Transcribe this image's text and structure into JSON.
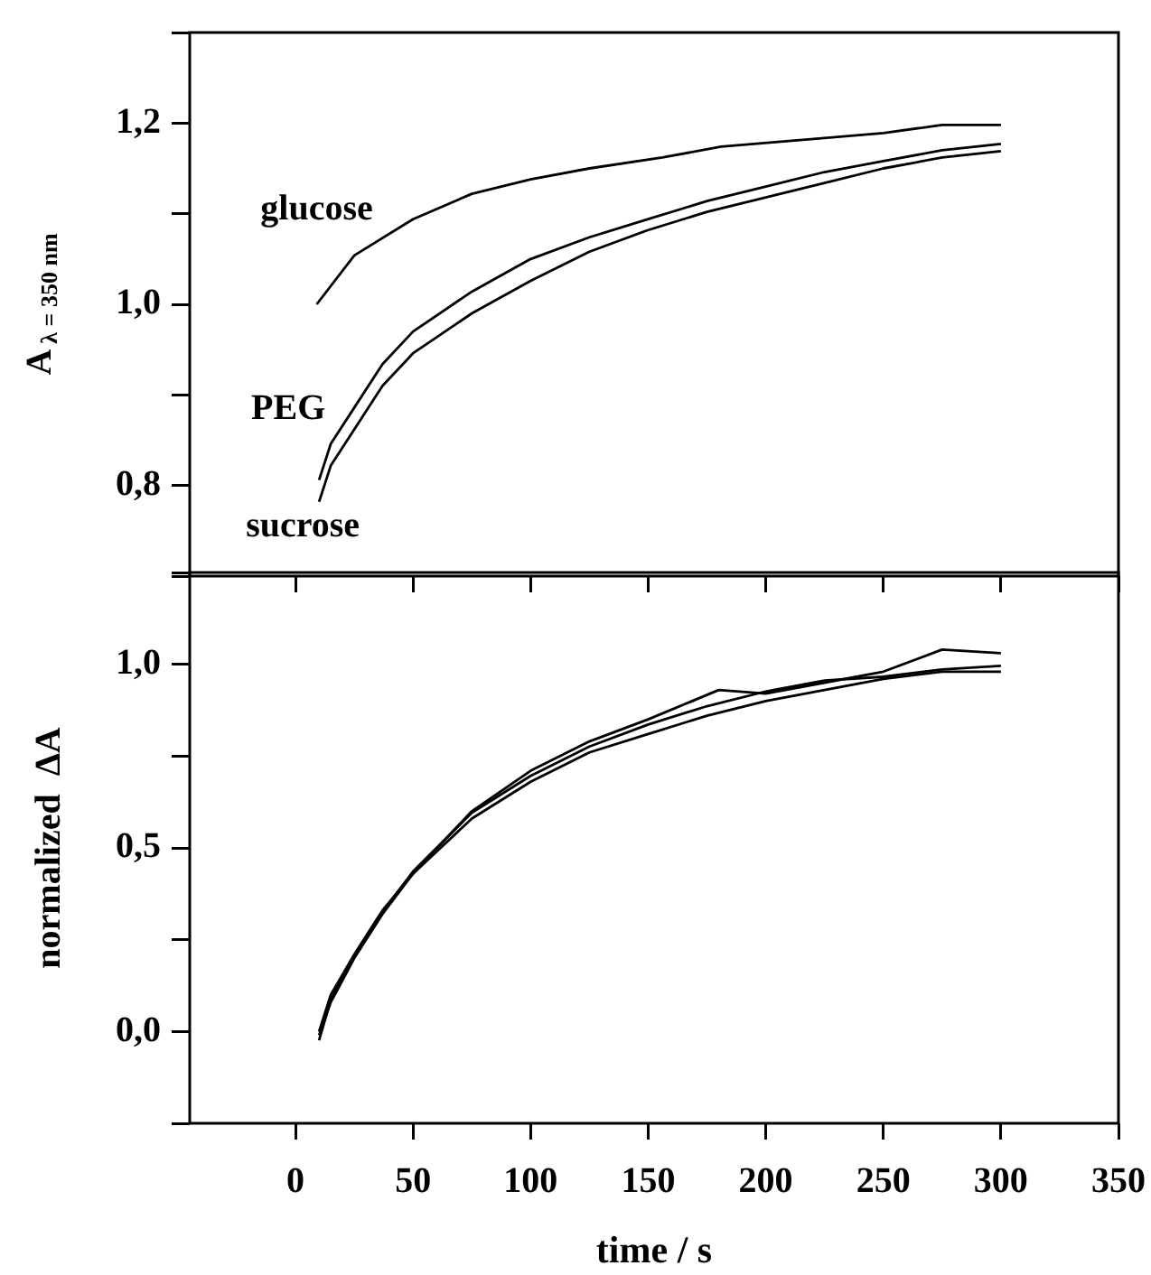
{
  "chart_data": [
    {
      "type": "line",
      "ylabel": "A$_{λ = 350 nm}$",
      "xlim": [
        -45,
        350
      ],
      "xticks": [
        0,
        50,
        100,
        150,
        200,
        250,
        300,
        350
      ],
      "ylim": [
        0.7,
        1.3
      ],
      "yticks": [
        {
          "value": 0.7,
          "label": null
        },
        {
          "value": 0.8,
          "label": "0,8"
        },
        {
          "value": 0.9,
          "label": null
        },
        {
          "value": 1.0,
          "label": "1,0"
        },
        {
          "value": 1.1,
          "label": null
        },
        {
          "value": 1.2,
          "label": "1,2"
        },
        {
          "value": 1.3,
          "label": null
        }
      ],
      "tick_labels": "y",
      "series": [
        {
          "name": "glucose",
          "color": "#000000",
          "x": [
            9,
            25,
            50,
            75,
            100,
            125,
            156,
            181,
            218,
            250,
            275,
            300
          ],
          "values": [
            1.0,
            1.054,
            1.094,
            1.122,
            1.138,
            1.15,
            1.162,
            1.174,
            1.182,
            1.189,
            1.198,
            1.198
          ]
        },
        {
          "name": "PEG",
          "color": "#000000",
          "x": [
            10,
            15,
            25,
            37,
            50,
            75,
            100,
            125,
            150,
            175,
            200,
            225,
            250,
            275,
            300
          ],
          "values": [
            0.806,
            0.846,
            0.886,
            0.934,
            0.97,
            1.014,
            1.05,
            1.074,
            1.094,
            1.114,
            1.13,
            1.146,
            1.158,
            1.17,
            1.177
          ]
        },
        {
          "name": "sucrose",
          "color": "#000000",
          "x": [
            10,
            15,
            25,
            37,
            50,
            75,
            100,
            125,
            150,
            175,
            200,
            225,
            250,
            275,
            300
          ],
          "values": [
            0.782,
            0.822,
            0.862,
            0.91,
            0.946,
            0.99,
            1.026,
            1.058,
            1.082,
            1.102,
            1.118,
            1.134,
            1.15,
            1.162,
            1.169
          ]
        }
      ]
    },
    {
      "type": "line",
      "xlabel": "time / s",
      "ylabel": "normalized  ΔA",
      "xlim": [
        -45,
        350
      ],
      "xticks": [
        0,
        50,
        100,
        150,
        200,
        250,
        300,
        350
      ],
      "ylim": [
        -0.25,
        1.25
      ],
      "yticks": [
        {
          "value": -0.25,
          "label": null
        },
        {
          "value": 0,
          "label": "0,0"
        },
        {
          "value": 0.25,
          "label": null
        },
        {
          "value": 0.5,
          "label": "0,5"
        },
        {
          "value": 0.75,
          "label": null
        },
        {
          "value": 1.0,
          "label": "1,0"
        },
        {
          "value": 1.25,
          "label": null
        }
      ],
      "series": [
        {
          "color": "#000000",
          "x": [
            10,
            15,
            25,
            37,
            50,
            75,
            100,
            125,
            150,
            175,
            200,
            225,
            250,
            275,
            300
          ],
          "values": [
            -0.024,
            0.086,
            0.206,
            0.326,
            0.436,
            0.596,
            0.696,
            0.776,
            0.836,
            0.886,
            0.926,
            0.956,
            0.966,
            0.986,
            0.996
          ]
        },
        {
          "color": "#000000",
          "x": [
            10,
            15,
            25,
            37,
            50,
            75,
            100,
            125,
            150,
            180,
            200,
            225,
            250,
            275,
            300
          ],
          "values": [
            0.0,
            0.1,
            0.21,
            0.33,
            0.43,
            0.6,
            0.71,
            0.79,
            0.85,
            0.93,
            0.92,
            0.95,
            0.98,
            1.04,
            1.03
          ]
        },
        {
          "color": "#000000",
          "x": [
            10,
            15,
            25,
            37,
            50,
            75,
            100,
            125,
            150,
            175,
            200,
            225,
            250,
            275,
            300
          ],
          "values": [
            -0.01,
            0.08,
            0.2,
            0.32,
            0.43,
            0.58,
            0.68,
            0.76,
            0.81,
            0.86,
            0.9,
            0.93,
            0.96,
            0.98,
            0.98
          ]
        }
      ]
    }
  ]
}
